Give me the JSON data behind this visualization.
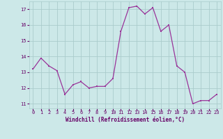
{
  "x": [
    0,
    1,
    2,
    3,
    4,
    5,
    6,
    7,
    8,
    9,
    10,
    11,
    12,
    13,
    14,
    15,
    16,
    17,
    18,
    19,
    20,
    21,
    22,
    23
  ],
  "y": [
    13.2,
    13.9,
    13.4,
    13.1,
    11.6,
    12.2,
    12.4,
    12.0,
    12.1,
    12.1,
    12.6,
    15.6,
    17.1,
    17.2,
    16.7,
    17.1,
    15.6,
    16.0,
    13.4,
    13.0,
    11.0,
    11.2,
    11.2,
    11.6
  ],
  "line_color": "#993399",
  "marker_color": "#993399",
  "bg_color": "#cce8e8",
  "grid_color": "#aacccc",
  "xlabel": "Windchill (Refroidissement éolien,°C)",
  "xlabel_color": "#660066",
  "tick_color": "#660066",
  "ylim": [
    10.7,
    17.5
  ],
  "yticks": [
    11,
    12,
    13,
    14,
    15,
    16,
    17
  ],
  "xlim": [
    -0.5,
    23.5
  ],
  "xticks": [
    0,
    1,
    2,
    3,
    4,
    5,
    6,
    7,
    8,
    9,
    10,
    11,
    12,
    13,
    14,
    15,
    16,
    17,
    18,
    19,
    20,
    21,
    22,
    23
  ]
}
